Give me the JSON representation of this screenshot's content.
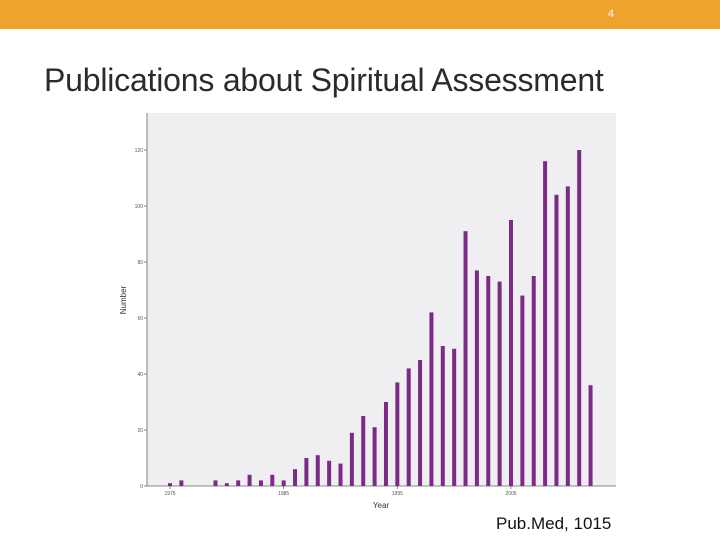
{
  "slide": {
    "number": "4",
    "title": "Publications about Spiritual Assessment",
    "source": "Pub.Med, 1015"
  },
  "colors": {
    "header_bar": "#efa22d",
    "plot_background": "#efeff2",
    "bar": "#7b2a86"
  },
  "chart_data": {
    "type": "bar",
    "xlabel": "Year",
    "ylabel": "Number",
    "x_tick_labels": [
      "1975",
      "1985",
      "1995",
      "2005"
    ],
    "y_tick_labels": [
      "0",
      "20",
      "40",
      "60",
      "80",
      "100",
      "120"
    ],
    "ylim": [
      0,
      130
    ],
    "xlim": [
      1974,
      2014
    ],
    "grid": false,
    "legend": "none",
    "categories": [
      1975,
      1976,
      1979,
      1980,
      1981,
      1982,
      1983,
      1984,
      1985,
      1986,
      1987,
      1988,
      1989,
      1990,
      1991,
      1992,
      1993,
      1994,
      1995,
      1996,
      1997,
      1998,
      1999,
      2000,
      2001,
      2002,
      2003,
      2004,
      2005,
      2006,
      2007,
      2008,
      2009,
      2010,
      2011,
      2012
    ],
    "values": [
      1,
      2,
      2,
      1,
      2,
      4,
      2,
      4,
      2,
      6,
      10,
      11,
      9,
      8,
      19,
      25,
      21,
      30,
      37,
      42,
      45,
      62,
      50,
      49,
      91,
      77,
      75,
      73,
      95,
      68,
      75,
      116,
      104,
      107,
      120,
      36
    ]
  }
}
